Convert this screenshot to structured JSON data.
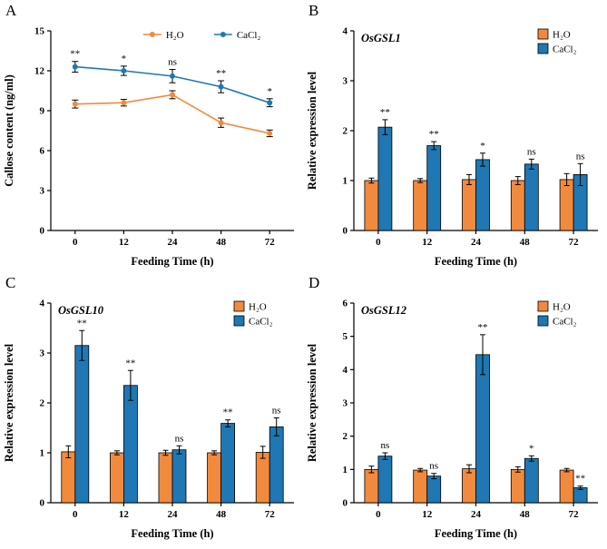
{
  "panels": [
    {
      "letter": "A"
    },
    {
      "letter": "B"
    },
    {
      "letter": "C"
    },
    {
      "letter": "D"
    }
  ],
  "colors": {
    "h2o": "#F28A3D",
    "cacl2": "#1F77B4",
    "axis": "#000000"
  },
  "legend_labels": {
    "h2o": "H₂O",
    "cacl2": "CaCl₂"
  },
  "chart_data": [
    {
      "type": "line",
      "gene_label": "",
      "xlabel": "Feeding Time (h)",
      "ylabel": "Callose content (ng/ml)",
      "categories": [
        "0",
        "12",
        "24",
        "48",
        "72"
      ],
      "ylim": [
        0,
        15
      ],
      "yticks": [
        0,
        3,
        6,
        9,
        12,
        15
      ],
      "legend_position": "top-center",
      "series": [
        {
          "name": "H₂O",
          "color": "#F28A3D",
          "values": [
            9.5,
            9.6,
            10.2,
            8.1,
            7.3
          ],
          "errors": [
            0.3,
            0.25,
            0.3,
            0.35,
            0.25
          ]
        },
        {
          "name": "CaCl₂",
          "color": "#1F77B4",
          "values": [
            12.3,
            12.0,
            11.6,
            10.8,
            9.6
          ],
          "errors": [
            0.4,
            0.35,
            0.5,
            0.45,
            0.3
          ]
        }
      ],
      "annotations": [
        "**",
        "*",
        "ns",
        "**",
        "*"
      ]
    },
    {
      "type": "bar",
      "gene_label": "OsGSL1",
      "xlabel": "Feeding Time (h)",
      "ylabel": "Relative expression level",
      "categories": [
        "0",
        "12",
        "24",
        "48",
        "72"
      ],
      "ylim": [
        0,
        4
      ],
      "yticks": [
        0,
        1,
        2,
        3,
        4
      ],
      "legend_position": "top-right",
      "series": [
        {
          "name": "H₂O",
          "color": "#F28A3D",
          "values": [
            1.0,
            1.0,
            1.02,
            1.0,
            1.02
          ],
          "errors": [
            0.05,
            0.04,
            0.1,
            0.08,
            0.12
          ]
        },
        {
          "name": "CaCl₂",
          "color": "#1F77B4",
          "values": [
            2.07,
            1.7,
            1.42,
            1.33,
            1.12
          ],
          "errors": [
            0.15,
            0.08,
            0.13,
            0.1,
            0.22
          ]
        }
      ],
      "annotations": [
        "**",
        "**",
        "*",
        "ns",
        "ns"
      ]
    },
    {
      "type": "bar",
      "gene_label": "OsGSL10",
      "xlabel": "Feeding Time (h)",
      "ylabel": "Relative expression level",
      "categories": [
        "0",
        "12",
        "24",
        "48",
        "72"
      ],
      "ylim": [
        0,
        4
      ],
      "yticks": [
        0,
        1,
        2,
        3,
        4
      ],
      "legend_position": "top-right",
      "series": [
        {
          "name": "H₂O",
          "color": "#F28A3D",
          "values": [
            1.02,
            1.0,
            1.0,
            1.0,
            1.01
          ],
          "errors": [
            0.12,
            0.04,
            0.05,
            0.04,
            0.12
          ]
        },
        {
          "name": "CaCl₂",
          "color": "#1F77B4",
          "values": [
            3.15,
            2.35,
            1.06,
            1.59,
            1.52
          ],
          "errors": [
            0.3,
            0.3,
            0.08,
            0.07,
            0.18
          ]
        }
      ],
      "annotations": [
        "**",
        "**",
        "ns",
        "**",
        "ns"
      ]
    },
    {
      "type": "bar",
      "gene_label": "OsGSL12",
      "xlabel": "Feeding Time (h)",
      "ylabel": "Relative expression level",
      "categories": [
        "0",
        "12",
        "24",
        "48",
        "72"
      ],
      "ylim": [
        0,
        6
      ],
      "yticks": [
        0,
        1,
        2,
        3,
        4,
        5,
        6
      ],
      "legend_position": "top-right",
      "series": [
        {
          "name": "H₂O",
          "color": "#F28A3D",
          "values": [
            1.0,
            0.98,
            1.02,
            1.0,
            0.98
          ],
          "errors": [
            0.1,
            0.05,
            0.12,
            0.08,
            0.05
          ]
        },
        {
          "name": "CaCl₂",
          "color": "#1F77B4",
          "values": [
            1.4,
            0.8,
            4.45,
            1.33,
            0.45
          ],
          "errors": [
            0.1,
            0.08,
            0.6,
            0.08,
            0.05
          ]
        }
      ],
      "annotations": [
        "ns",
        "ns",
        "**",
        "*",
        "**"
      ]
    }
  ]
}
